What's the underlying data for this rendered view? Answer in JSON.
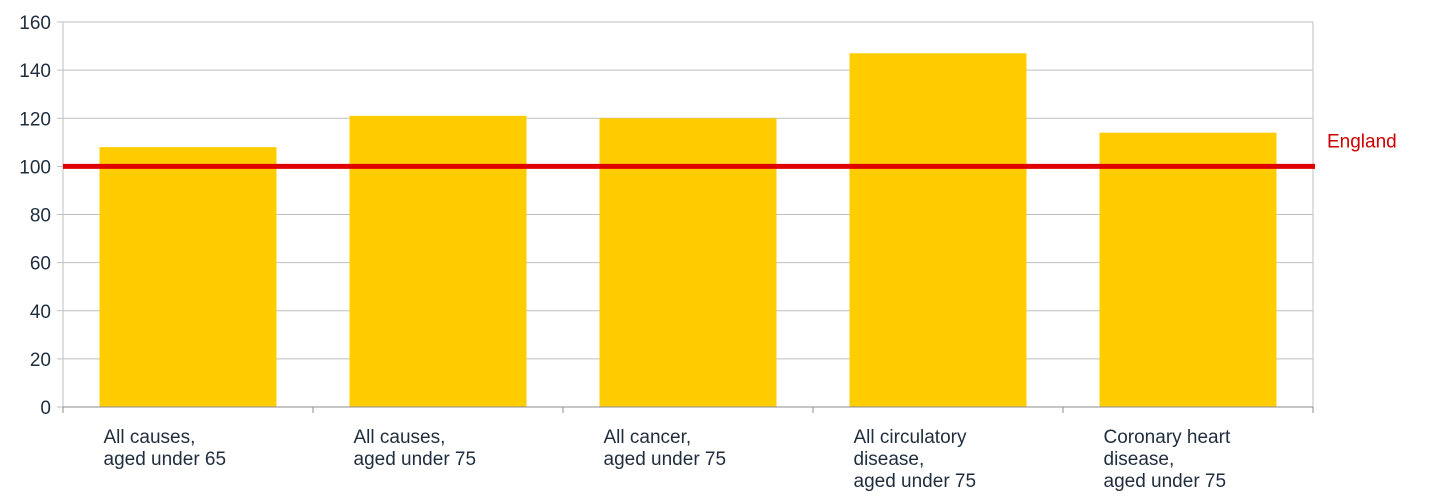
{
  "chart_data": {
    "type": "bar",
    "categories": [
      [
        "All causes,",
        "aged under 65"
      ],
      [
        "All causes,",
        "aged under 75"
      ],
      [
        "All cancer,",
        "aged under 75"
      ],
      [
        "All circulatory",
        "disease,",
        "aged under 75"
      ],
      [
        "Coronary heart",
        "disease,",
        "aged under 75"
      ]
    ],
    "values": [
      108,
      121,
      120,
      147,
      114
    ],
    "ylim": [
      0,
      160
    ],
    "yticks": [
      0,
      20,
      40,
      60,
      80,
      100,
      120,
      140,
      160
    ],
    "grid": true,
    "reference_line": {
      "label": "England",
      "value": 100
    },
    "colors": {
      "bar": "#ffcc00",
      "reference": "#e00000",
      "reference_label": "#cc0000",
      "grid": "#bfbfbf",
      "text": "#1f2d3d"
    }
  }
}
